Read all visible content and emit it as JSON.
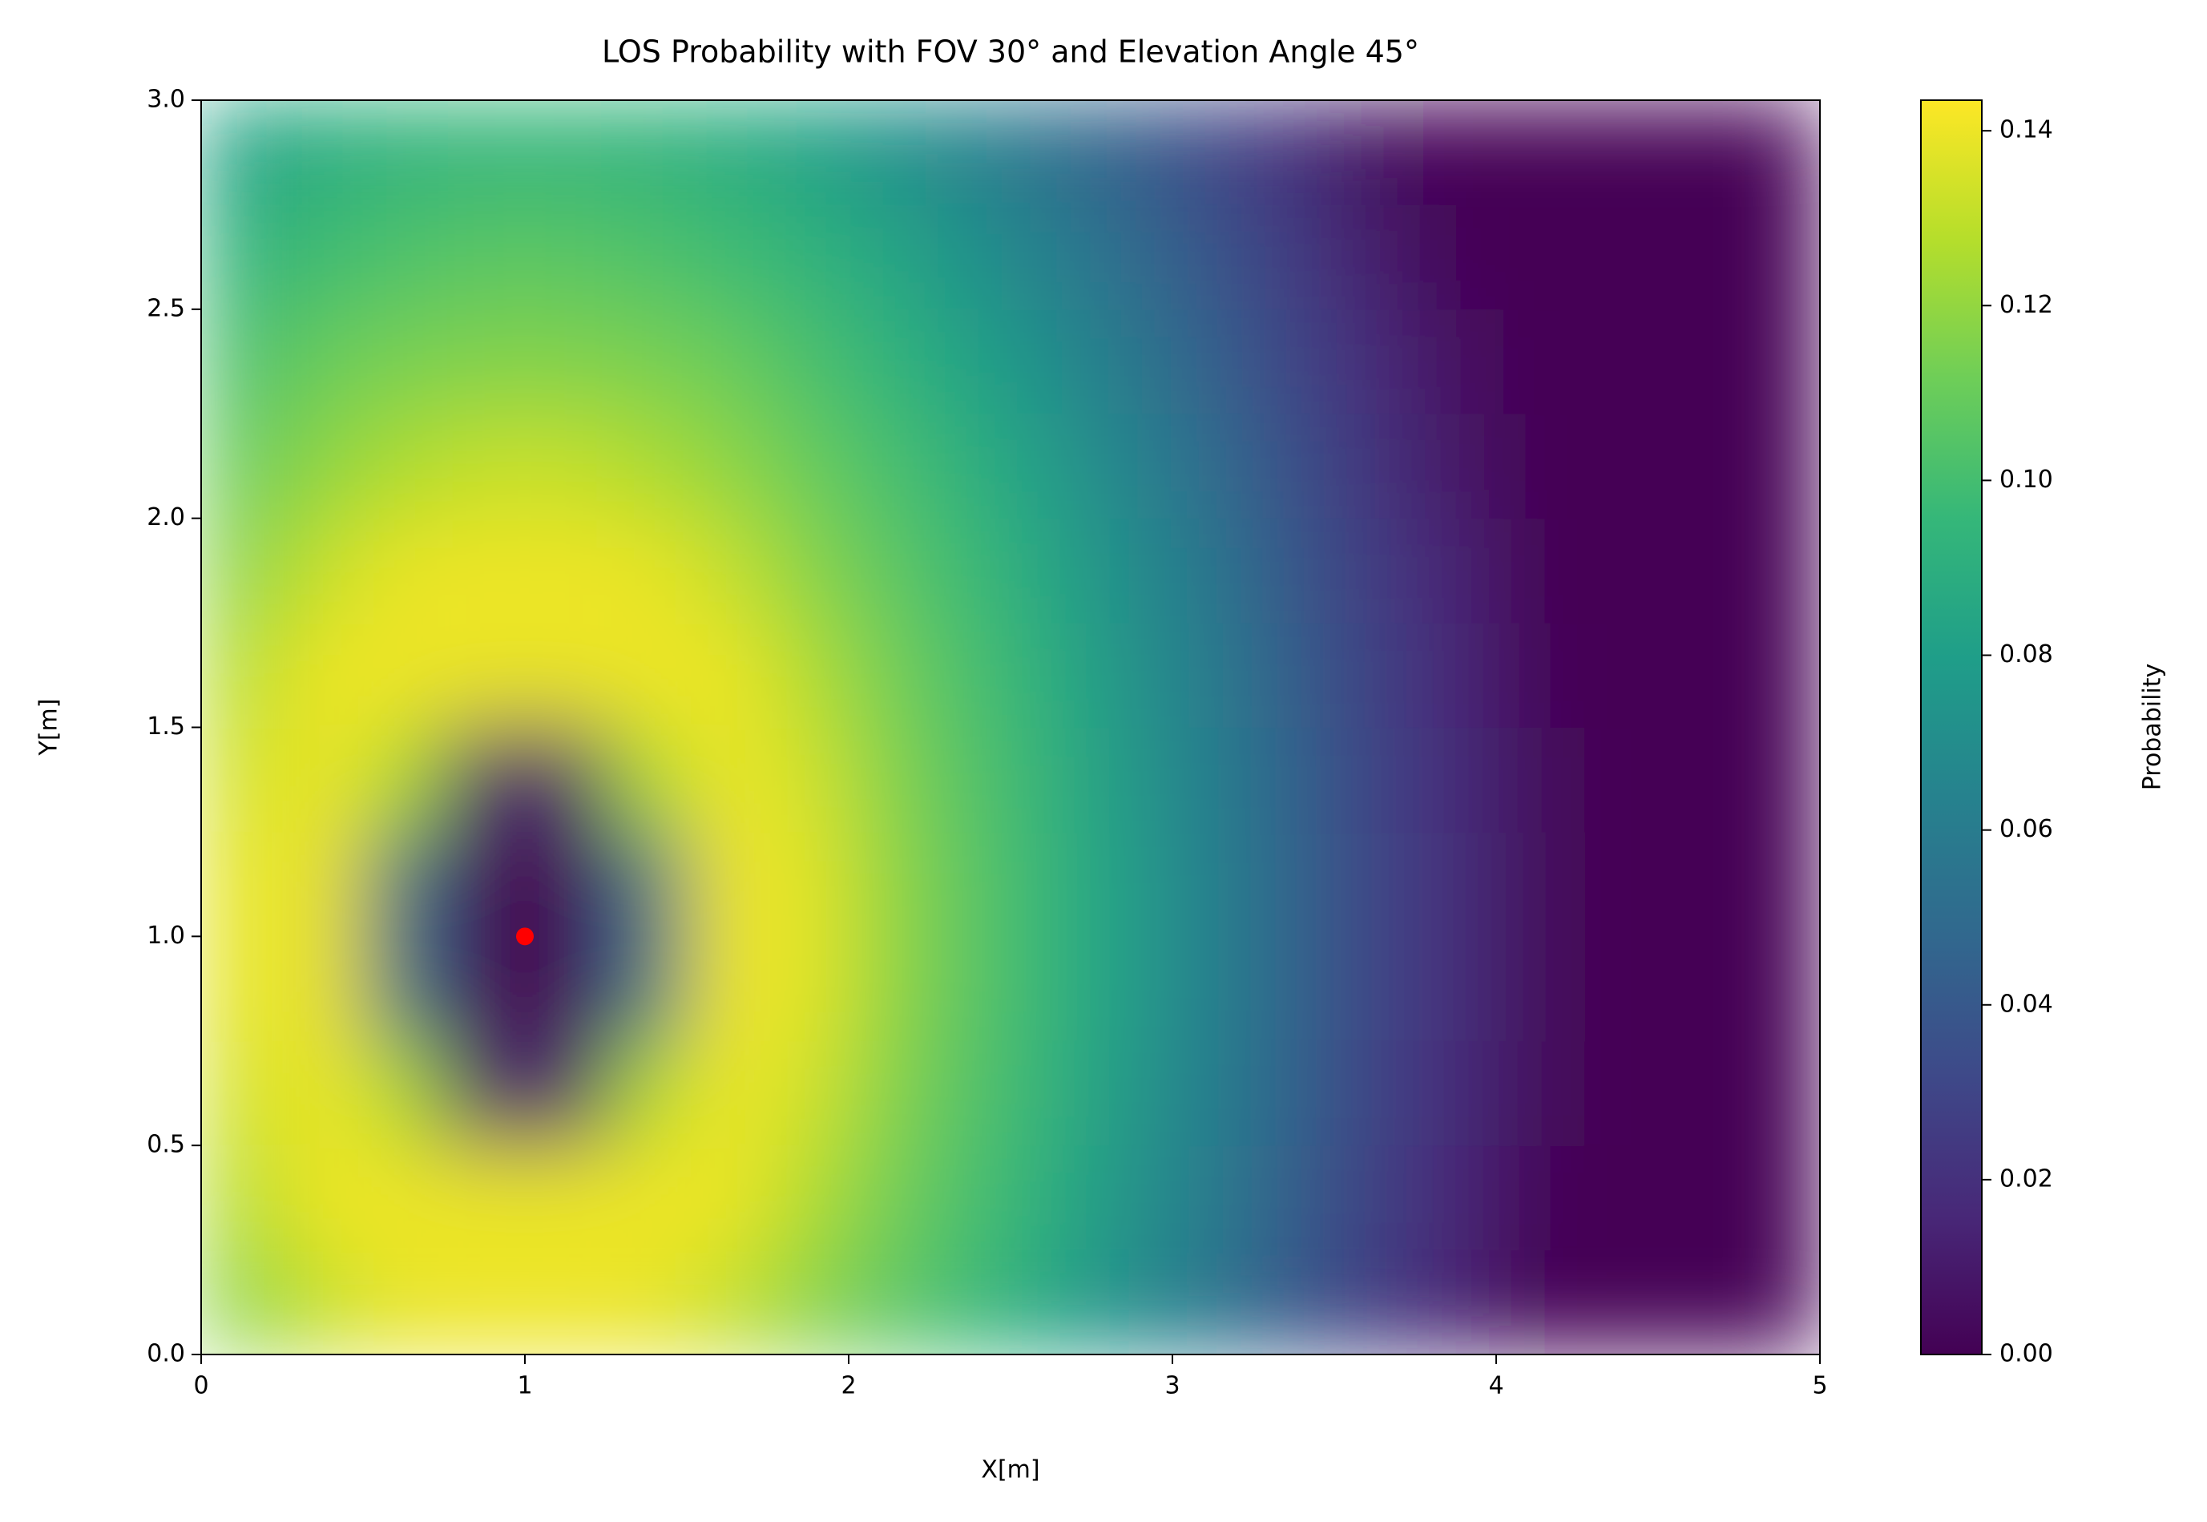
{
  "chart_data": {
    "type": "heatmap",
    "title": "LOS Probability with FOV 30° and Elevation Angle 45°",
    "x_label": "X[m]",
    "y_label": "Y[m]",
    "colorbar_label": "Probability",
    "x": [
      0.125,
      0.375,
      0.625,
      0.875,
      1.125,
      1.375,
      1.625,
      1.875,
      2.125,
      2.375,
      2.625,
      2.875,
      3.125,
      3.375,
      3.625,
      3.875,
      4.125,
      4.375,
      4.625,
      4.875
    ],
    "y": [
      0.125,
      0.375,
      0.625,
      0.875,
      1.125,
      1.375,
      1.625,
      1.875,
      2.125,
      2.375,
      2.625,
      2.875
    ],
    "values": [
      [
        0.118,
        0.131,
        0.139,
        0.14,
        0.14,
        0.139,
        0.131,
        0.118,
        0.107,
        0.097,
        0.084,
        0.069,
        0.055,
        0.039,
        0.025,
        0.014,
        0,
        0,
        0,
        0
      ],
      [
        0.127,
        0.14,
        0.14,
        0.139,
        0.139,
        0.14,
        0.14,
        0.127,
        0.113,
        0.101,
        0.089,
        0.073,
        0.059,
        0.042,
        0.027,
        0.016,
        0.002,
        0,
        0,
        0
      ],
      [
        0.134,
        0.14,
        0.126,
        0.011,
        0.011,
        0.126,
        0.14,
        0.134,
        0.117,
        0.104,
        0.092,
        0.076,
        0.061,
        0.045,
        0.029,
        0.018,
        0.004,
        0,
        0,
        0
      ],
      [
        0.138,
        0.14,
        0.051,
        0,
        0,
        0.051,
        0.14,
        0.138,
        0.12,
        0.106,
        0.094,
        0.078,
        0.062,
        0.046,
        0.03,
        0.019,
        0.004,
        0,
        0,
        0
      ],
      [
        0.138,
        0.14,
        0.051,
        0,
        0,
        0.051,
        0.14,
        0.138,
        0.12,
        0.106,
        0.094,
        0.078,
        0.062,
        0.046,
        0.03,
        0.019,
        0.004,
        0,
        0,
        0
      ],
      [
        0.134,
        0.14,
        0.126,
        0.011,
        0.011,
        0.126,
        0.14,
        0.134,
        0.117,
        0.104,
        0.092,
        0.076,
        0.061,
        0.045,
        0.029,
        0.018,
        0.004,
        0,
        0,
        0
      ],
      [
        0.127,
        0.14,
        0.14,
        0.139,
        0.139,
        0.14,
        0.14,
        0.127,
        0.113,
        0.101,
        0.089,
        0.073,
        0.059,
        0.042,
        0.027,
        0.016,
        0.002,
        0,
        0,
        0
      ],
      [
        0.118,
        0.131,
        0.139,
        0.14,
        0.14,
        0.139,
        0.131,
        0.118,
        0.107,
        0.097,
        0.084,
        0.069,
        0.055,
        0.039,
        0.025,
        0.014,
        0,
        0,
        0,
        0
      ],
      [
        0.11,
        0.119,
        0.126,
        0.131,
        0.131,
        0.126,
        0.119,
        0.11,
        0.101,
        0.091,
        0.078,
        0.064,
        0.05,
        0.035,
        0.021,
        0.009,
        0,
        0,
        0,
        0
      ],
      [
        0.102,
        0.11,
        0.114,
        0.116,
        0.116,
        0.114,
        0.11,
        0.102,
        0.094,
        0.083,
        0.07,
        0.057,
        0.044,
        0.03,
        0.017,
        0.006,
        0,
        0,
        0,
        0
      ],
      [
        0.093,
        0.099,
        0.103,
        0.106,
        0.106,
        0.103,
        0.099,
        0.093,
        0.085,
        0.073,
        0.062,
        0.05,
        0.038,
        0.025,
        0.011,
        0.001,
        0,
        0,
        0,
        0
      ],
      [
        0.083,
        0.089,
        0.093,
        0.095,
        0.095,
        0.093,
        0.089,
        0.083,
        0.073,
        0.064,
        0.053,
        0.042,
        0.031,
        0.019,
        0.005,
        0,
        0,
        0,
        0,
        0
      ]
    ],
    "marker": {
      "x": 1,
      "y": 1,
      "color": "#ff0000"
    },
    "xlim": [
      0,
      5
    ],
    "ylim": [
      0,
      3
    ],
    "zlim": [
      0,
      0.1435
    ],
    "xticks": [
      0,
      1,
      2,
      3,
      4,
      5
    ],
    "yticks": [
      {
        "value": 0,
        "label": "0.0"
      },
      0.5,
      {
        "value": 1,
        "label": "1.0"
      },
      1.5,
      {
        "value": 2,
        "label": "2.0"
      },
      2.5,
      {
        "value": 3,
        "label": "3.0"
      }
    ],
    "zticks": [
      {
        "value": 0,
        "label": "0.00"
      },
      0.02,
      0.04,
      0.06,
      0.08,
      {
        "value": 0.1,
        "label": "0.10"
      },
      0.12,
      0.14
    ],
    "colormap": [
      "#440154",
      "#482878",
      "#3e4989",
      "#31688e",
      "#26828e",
      "#1f9e89",
      "#35b779",
      "#6ece58",
      "#b5de2b",
      "#fde725"
    ]
  }
}
